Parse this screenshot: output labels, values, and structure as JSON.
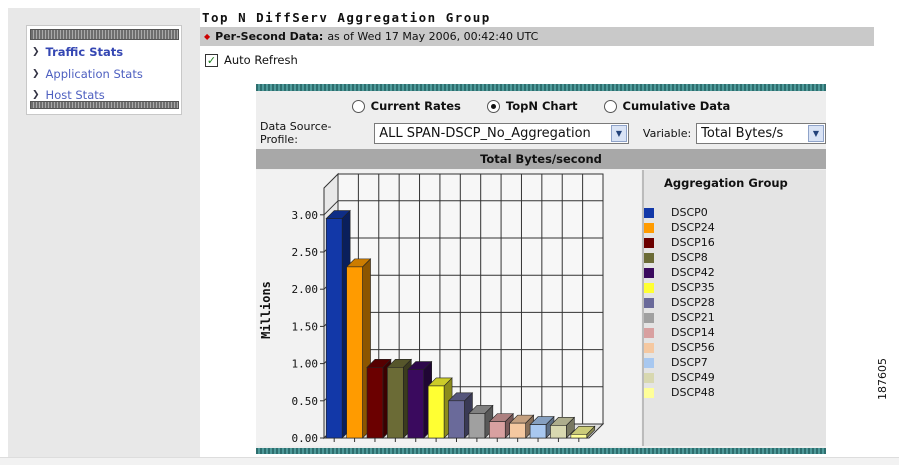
{
  "page": {
    "title": "Top N DiffServ Aggregation Group",
    "side_code": "187605"
  },
  "sidebar": {
    "items": [
      {
        "label": "Traffic Stats",
        "active": true
      },
      {
        "label": "Application Stats",
        "active": false
      },
      {
        "label": "Host Stats",
        "active": false
      }
    ]
  },
  "status": {
    "label": "Per-Second Data:",
    "text": "as of Wed 17 May 2006, 00:42:40 UTC"
  },
  "auto_refresh": {
    "label": "Auto Refresh",
    "checked": true
  },
  "view_options": {
    "items": [
      {
        "label": "Current Rates",
        "selected": false
      },
      {
        "label": "TopN Chart",
        "selected": true
      },
      {
        "label": "Cumulative Data",
        "selected": false
      }
    ]
  },
  "controls": {
    "source_label": "Data Source-Profile:",
    "source_value": "ALL SPAN-DSCP_No_Aggregation",
    "variable_label": "Variable:",
    "variable_value": "Total Bytes/s"
  },
  "legend": {
    "title": "Aggregation Group"
  },
  "chart_data": {
    "type": "bar",
    "title": "Total Bytes/second",
    "ylabel": "Millions",
    "xlabel": "",
    "ylim": [
      0,
      3.2
    ],
    "yticks": [
      "0.00",
      "0.50",
      "1.00",
      "1.50",
      "2.00",
      "2.50",
      "3.00"
    ],
    "grid": true,
    "legend_position": "right",
    "categories": [
      "DSCP0",
      "DSCP24",
      "DSCP16",
      "DSCP8",
      "DSCP42",
      "DSCP35",
      "DSCP28",
      "DSCP21",
      "DSCP14",
      "DSCP56",
      "DSCP7",
      "DSCP49",
      "DSCP48"
    ],
    "values": [
      2.95,
      2.3,
      0.95,
      0.95,
      0.92,
      0.7,
      0.5,
      0.33,
      0.22,
      0.2,
      0.18,
      0.17,
      0.05
    ],
    "colors": [
      "#1238a8",
      "#ff9b00",
      "#6b0000",
      "#6b6b36",
      "#3a0a5e",
      "#ffff33",
      "#6a6a9a",
      "#a0a0a0",
      "#d8a0a0",
      "#f5c8a0",
      "#a8c8f0",
      "#d8d8b0",
      "#ffff99"
    ]
  }
}
